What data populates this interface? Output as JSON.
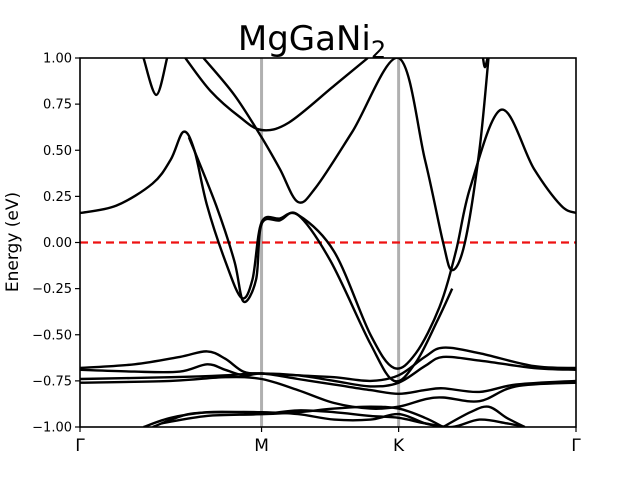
{
  "chart_data": {
    "type": "line",
    "title": "MgGaNi",
    "title_subscript": "2",
    "ylabel": "Energy (eV)",
    "xlabel": "",
    "ylim": [
      -1.0,
      1.0
    ],
    "xlim": [
      0,
      2.732
    ],
    "yticks": [
      -1.0,
      -0.75,
      -0.5,
      -0.25,
      0.0,
      0.25,
      0.5,
      0.75,
      1.0
    ],
    "ytick_labels": [
      "−1.00",
      "−0.75",
      "−0.50",
      "−0.25",
      "0.00",
      "0.25",
      "0.50",
      "0.75",
      "1.00"
    ],
    "kpoints": [
      {
        "label": "Γ",
        "x": 0
      },
      {
        "label": "M",
        "x": 1.0
      },
      {
        "label": "K",
        "x": 1.755
      },
      {
        "label": "Γ",
        "x": 2.732
      }
    ],
    "fermi_level": 0.0,
    "grid": false,
    "colors": {
      "bands": "#000000",
      "fermi": "#ee1111",
      "kline": "#b0b0b0"
    },
    "series": [
      {
        "values": [
          [
            0,
            0.16
          ],
          [
            0.2,
            0.2
          ],
          [
            0.4,
            0.32
          ],
          [
            0.5,
            0.45
          ],
          [
            0.57,
            0.6
          ],
          [
            0.63,
            0.5
          ],
          [
            0.7,
            0.2
          ],
          [
            0.8,
            -0.1
          ],
          [
            0.89,
            -0.3
          ],
          [
            0.95,
            -0.2
          ],
          [
            1.0,
            0.11
          ],
          [
            1.1,
            0.13
          ],
          [
            1.2,
            0.15
          ],
          [
            1.4,
            -0.05
          ],
          [
            1.6,
            -0.5
          ],
          [
            1.73,
            -0.68
          ],
          [
            1.85,
            -0.6
          ],
          [
            1.98,
            -0.35
          ],
          [
            2.07,
            -0.05
          ],
          [
            2.15,
            0.3
          ],
          [
            2.32,
            0.72
          ],
          [
            2.5,
            0.4
          ],
          [
            2.65,
            0.2
          ],
          [
            2.732,
            0.16
          ]
        ]
      },
      {
        "values": [
          [
            0.35,
            1.0
          ],
          [
            0.42,
            0.8
          ],
          [
            0.48,
            1.0
          ]
        ]
      },
      {
        "values": [
          [
            0.58,
            1.0
          ],
          [
            0.72,
            0.82
          ],
          [
            0.88,
            0.68
          ],
          [
            1.0,
            0.61
          ],
          [
            1.15,
            0.65
          ],
          [
            1.4,
            0.85
          ],
          [
            1.585,
            1.0
          ]
        ]
      },
      {
        "values": [
          [
            0.68,
            1.0
          ],
          [
            0.85,
            0.8
          ],
          [
            1.0,
            0.57
          ],
          [
            1.1,
            0.4
          ],
          [
            1.2,
            0.22
          ],
          [
            1.3,
            0.3
          ],
          [
            1.5,
            0.6
          ],
          [
            1.755,
            1.0
          ],
          [
            1.9,
            0.45
          ],
          [
            2.0,
            0.0
          ],
          [
            2.05,
            -0.15
          ],
          [
            2.12,
            0.0
          ],
          [
            2.2,
            0.5
          ],
          [
            2.25,
            1.0
          ]
        ]
      },
      {
        "values": [
          [
            0.6,
            0.57
          ],
          [
            0.75,
            0.2
          ],
          [
            0.85,
            -0.1
          ],
          [
            0.9,
            -0.32
          ],
          [
            0.97,
            -0.2
          ],
          [
            1.0,
            0.1
          ],
          [
            1.1,
            0.12
          ],
          [
            1.2,
            0.15
          ],
          [
            1.38,
            -0.1
          ],
          [
            1.6,
            -0.55
          ],
          [
            1.73,
            -0.75
          ],
          [
            1.85,
            -0.65
          ],
          [
            1.97,
            -0.42
          ],
          [
            2.05,
            -0.25
          ]
        ]
      },
      {
        "values": [
          [
            2.22,
            1.0
          ],
          [
            2.23,
            0.95
          ],
          [
            2.245,
            1.0
          ]
        ]
      },
      {
        "values": [
          [
            0,
            -0.68
          ],
          [
            0.3,
            -0.66
          ],
          [
            0.55,
            -0.62
          ],
          [
            0.7,
            -0.59
          ],
          [
            0.8,
            -0.63
          ],
          [
            0.9,
            -0.7
          ],
          [
            1.0,
            -0.71
          ],
          [
            1.2,
            -0.72
          ],
          [
            1.4,
            -0.73
          ],
          [
            1.6,
            -0.75
          ],
          [
            1.755,
            -0.72
          ],
          [
            1.9,
            -0.62
          ],
          [
            2.0,
            -0.57
          ],
          [
            2.2,
            -0.6
          ],
          [
            2.5,
            -0.67
          ],
          [
            2.732,
            -0.68
          ]
        ]
      },
      {
        "values": [
          [
            0,
            -0.69
          ],
          [
            0.3,
            -0.7
          ],
          [
            0.55,
            -0.7
          ],
          [
            0.7,
            -0.66
          ],
          [
            0.8,
            -0.69
          ],
          [
            0.9,
            -0.72
          ],
          [
            1.0,
            -0.71
          ],
          [
            1.2,
            -0.72
          ],
          [
            1.4,
            -0.75
          ],
          [
            1.6,
            -0.78
          ],
          [
            1.755,
            -0.76
          ],
          [
            1.9,
            -0.67
          ],
          [
            2.0,
            -0.62
          ],
          [
            2.2,
            -0.64
          ],
          [
            2.5,
            -0.68
          ],
          [
            2.732,
            -0.69
          ]
        ]
      },
      {
        "values": [
          [
            0,
            -0.74
          ],
          [
            0.5,
            -0.73
          ],
          [
            0.8,
            -0.72
          ],
          [
            1.0,
            -0.71
          ],
          [
            1.2,
            -0.74
          ],
          [
            1.4,
            -0.77
          ],
          [
            1.6,
            -0.8
          ],
          [
            1.755,
            -0.82
          ],
          [
            1.9,
            -0.8
          ],
          [
            2.0,
            -0.79
          ],
          [
            2.2,
            -0.81
          ],
          [
            2.4,
            -0.77
          ],
          [
            2.732,
            -0.75
          ]
        ]
      },
      {
        "values": [
          [
            0,
            -0.76
          ],
          [
            0.5,
            -0.75
          ],
          [
            0.8,
            -0.73
          ],
          [
            1.0,
            -0.74
          ],
          [
            1.2,
            -0.8
          ],
          [
            1.4,
            -0.87
          ],
          [
            1.6,
            -0.9
          ],
          [
            1.755,
            -0.89
          ],
          [
            1.9,
            -0.85
          ],
          [
            2.0,
            -0.84
          ],
          [
            2.2,
            -0.86
          ],
          [
            2.4,
            -0.78
          ],
          [
            2.732,
            -0.76
          ]
        ]
      },
      {
        "values": [
          [
            0.35,
            -1.0
          ],
          [
            0.5,
            -0.95
          ],
          [
            0.7,
            -0.92
          ],
          [
            0.9,
            -0.92
          ],
          [
            1.0,
            -0.93
          ],
          [
            1.2,
            -0.92
          ],
          [
            1.4,
            -0.9
          ],
          [
            1.6,
            -0.89
          ],
          [
            1.755,
            -0.9
          ],
          [
            1.9,
            -0.95
          ],
          [
            2.0,
            -1.0
          ]
        ]
      },
      {
        "values": [
          [
            0.4,
            -1.0
          ],
          [
            0.6,
            -0.93
          ],
          [
            0.8,
            -0.92
          ],
          [
            1.0,
            -0.92
          ],
          [
            1.2,
            -0.93
          ],
          [
            1.4,
            -0.96
          ],
          [
            1.6,
            -0.96
          ],
          [
            1.755,
            -0.93
          ],
          [
            1.9,
            -0.98
          ],
          [
            2.0,
            -1.0
          ]
        ]
      },
      {
        "values": [
          [
            0.45,
            -0.98
          ],
          [
            0.7,
            -0.94
          ],
          [
            1.0,
            -0.93
          ],
          [
            1.2,
            -0.91
          ],
          [
            1.4,
            -0.92
          ],
          [
            1.6,
            -0.94
          ],
          [
            1.755,
            -0.95
          ],
          [
            1.9,
            -0.98
          ],
          [
            2.05,
            -1.0
          ],
          [
            2.2,
            -0.96
          ],
          [
            2.35,
            -0.98
          ],
          [
            2.45,
            -1.0
          ]
        ]
      },
      {
        "values": [
          [
            2.0,
            -1.0
          ],
          [
            2.15,
            -0.92
          ],
          [
            2.25,
            -0.89
          ],
          [
            2.35,
            -0.95
          ],
          [
            2.45,
            -1.0
          ]
        ]
      }
    ]
  }
}
